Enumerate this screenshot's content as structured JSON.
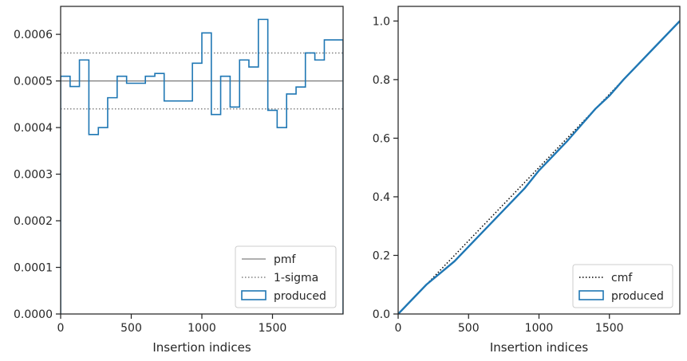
{
  "chart_data": [
    {
      "type": "line",
      "panel": "left",
      "xlabel": "Insertion indices",
      "ylabel": "",
      "xlim": [
        0,
        2000
      ],
      "ylim": [
        0,
        0.00066
      ],
      "x_ticks": [
        0,
        500,
        1000,
        1500
      ],
      "x_tick_labels": [
        "0",
        "500",
        "1000",
        "1500"
      ],
      "y_ticks": [
        0,
        0.0001,
        0.0002,
        0.0003,
        0.0004,
        0.0005,
        0.0006
      ],
      "y_tick_labels": [
        "0.0000",
        "0.0001",
        "0.0002",
        "0.0003",
        "0.0004",
        "0.0005",
        "0.0006"
      ],
      "legend_position": "lower-right",
      "grid": false,
      "series": [
        {
          "name": "pmf",
          "style": "solid",
          "color": "#808080",
          "y": 0.0005
        },
        {
          "name": "1-sigma",
          "style": "dotted",
          "color": "#808080",
          "y_values": [
            0.00056,
            0.00044
          ]
        },
        {
          "name": "produced",
          "style": "step",
          "color": "#1f77b4",
          "bin_edges": [
            0,
            67,
            133,
            200,
            267,
            333,
            400,
            467,
            533,
            600,
            667,
            733,
            800,
            867,
            933,
            1000,
            1067,
            1133,
            1200,
            1267,
            1333,
            1400,
            1467,
            1533,
            1600,
            1667,
            1733,
            1800,
            1867,
            1933,
            2000
          ],
          "values": [
            0.00051,
            0.000488,
            0.000545,
            0.000385,
            0.0004,
            0.000464,
            0.00051,
            0.000495,
            0.000495,
            0.00051,
            0.000516,
            0.000457,
            0.000457,
            0.000457,
            0.000538,
            0.000603,
            0.000428,
            0.00051,
            0.000444,
            0.000545,
            0.00053,
            0.000632,
            0.000437,
            0.0004,
            0.000472,
            0.000487,
            0.00056,
            0.000545,
            0.000588,
            0.000588
          ]
        }
      ]
    },
    {
      "type": "line",
      "panel": "right",
      "xlabel": "Insertion indices",
      "ylabel": "",
      "xlim": [
        0,
        2000
      ],
      "ylim": [
        0,
        1.05
      ],
      "x_ticks": [
        0,
        500,
        1000,
        1500
      ],
      "x_tick_labels": [
        "0",
        "500",
        "1000",
        "1500"
      ],
      "y_ticks": [
        0,
        0.2,
        0.4,
        0.6,
        0.8,
        1.0
      ],
      "y_tick_labels": [
        "0.0",
        "0.2",
        "0.4",
        "0.6",
        "0.8",
        "1.0"
      ],
      "legend_position": "lower-right",
      "grid": false,
      "series": [
        {
          "name": "cmf",
          "style": "dotted",
          "color": "#000000",
          "x": [
            0,
            2000
          ],
          "y": [
            0,
            1.0
          ]
        },
        {
          "name": "produced",
          "style": "step",
          "color": "#1f77b4",
          "x": [
            0,
            100,
            200,
            300,
            400,
            500,
            600,
            700,
            800,
            900,
            1000,
            1100,
            1200,
            1300,
            1400,
            1500,
            1600,
            1700,
            1800,
            1900,
            2000
          ],
          "y": [
            0,
            0.05,
            0.1,
            0.14,
            0.18,
            0.23,
            0.28,
            0.33,
            0.38,
            0.43,
            0.49,
            0.54,
            0.59,
            0.645,
            0.7,
            0.745,
            0.8,
            0.85,
            0.9,
            0.95,
            1.0
          ]
        }
      ]
    }
  ]
}
